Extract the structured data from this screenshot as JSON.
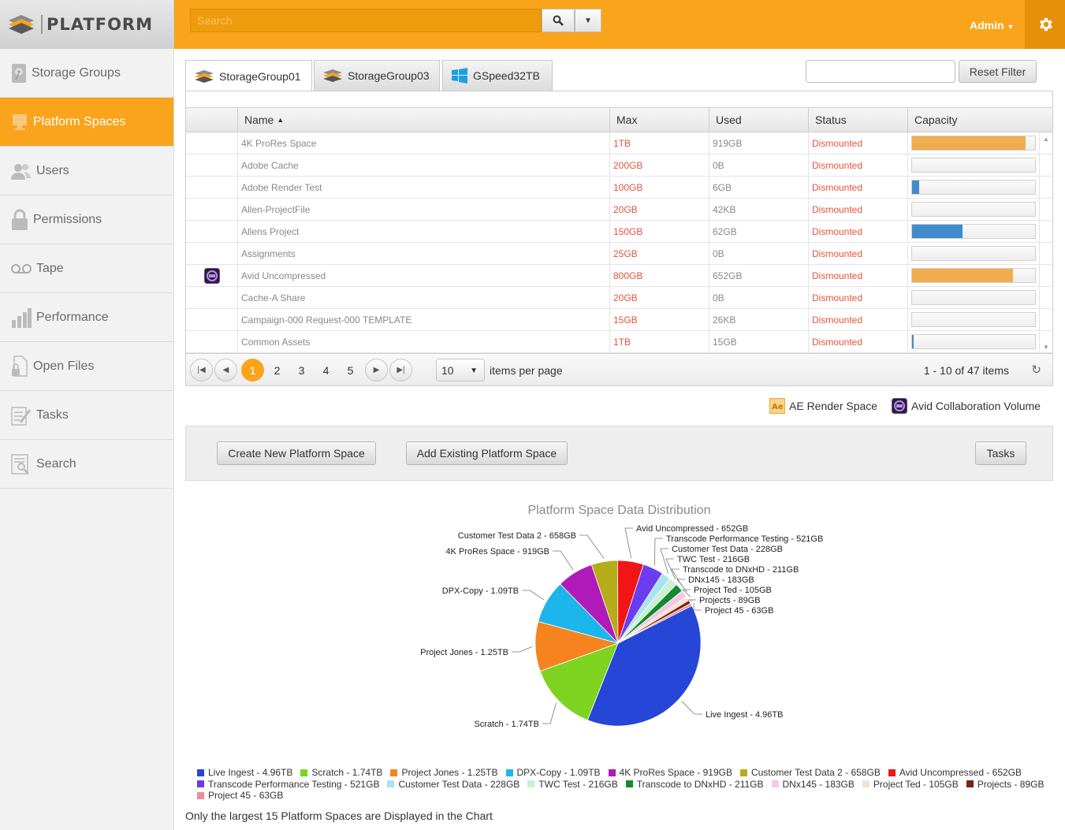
{
  "header": {
    "logo_text": "PLATFORM",
    "search_placeholder": "Search",
    "user": "Admin"
  },
  "sidebar": {
    "items": [
      {
        "label": "Storage Groups",
        "icon": "storage-icon"
      },
      {
        "label": "Platform Spaces",
        "icon": "platform-icon",
        "active": true
      },
      {
        "label": "Users",
        "icon": "users-icon"
      },
      {
        "label": "Permissions",
        "icon": "lock-icon"
      },
      {
        "label": "Tape",
        "icon": "tape-icon"
      },
      {
        "label": "Performance",
        "icon": "bars-icon"
      },
      {
        "label": "Open Files",
        "icon": "file-lock-icon"
      },
      {
        "label": "Tasks",
        "icon": "tasks-icon"
      },
      {
        "label": "Search",
        "icon": "search-doc-icon"
      }
    ]
  },
  "tabs": [
    {
      "label": "StorageGroup01",
      "active": true
    },
    {
      "label": "StorageGroup03"
    },
    {
      "label": "GSpeed32TB"
    }
  ],
  "filter": {
    "value": "",
    "reset_label": "Reset Filter"
  },
  "grid": {
    "columns": [
      "Name",
      "Max",
      "Used",
      "Status",
      "Capacity"
    ],
    "sort_indicator": "▲",
    "rows": [
      {
        "icon": "",
        "name": "4K ProRes Space",
        "max": "1TB",
        "used": "919GB",
        "status": "Dismounted",
        "capacity_pct": 92,
        "bar_color": "#f0ad4e"
      },
      {
        "icon": "",
        "name": "Adobe Cache",
        "max": "200GB",
        "used": "0B",
        "status": "Dismounted",
        "capacity_pct": 0,
        "bar_color": "#f0ad4e"
      },
      {
        "icon": "",
        "name": "Adobe Render Test",
        "max": "100GB",
        "used": "6GB",
        "status": "Dismounted",
        "capacity_pct": 6,
        "bar_color": "#428bca"
      },
      {
        "icon": "",
        "name": "Allen-ProjectFile",
        "max": "20GB",
        "used": "42KB",
        "status": "Dismounted",
        "capacity_pct": 0,
        "bar_color": "#428bca"
      },
      {
        "icon": "",
        "name": "Allens Project",
        "max": "150GB",
        "used": "62GB",
        "status": "Dismounted",
        "capacity_pct": 41,
        "bar_color": "#428bca"
      },
      {
        "icon": "",
        "name": "Assignments",
        "max": "25GB",
        "used": "0B",
        "status": "Dismounted",
        "capacity_pct": 0,
        "bar_color": "#428bca"
      },
      {
        "icon": "avid",
        "name": "Avid Uncompressed",
        "max": "800GB",
        "used": "652GB",
        "status": "Dismounted",
        "capacity_pct": 82,
        "bar_color": "#f0ad4e"
      },
      {
        "icon": "",
        "name": "Cache-A Share",
        "max": "20GB",
        "used": "0B",
        "status": "Dismounted",
        "capacity_pct": 0,
        "bar_color": "#428bca"
      },
      {
        "icon": "",
        "name": "Campaign-000 Request-000 TEMPLATE",
        "max": "15GB",
        "used": "26KB",
        "status": "Dismounted",
        "capacity_pct": 0,
        "bar_color": "#428bca"
      },
      {
        "icon": "",
        "name": "Common Assets",
        "max": "1TB",
        "used": "15GB",
        "status": "Dismounted",
        "capacity_pct": 1.5,
        "bar_color": "#428bca"
      }
    ]
  },
  "pager": {
    "pages": [
      "1",
      "2",
      "3",
      "4",
      "5"
    ],
    "current": "1",
    "per_page": "10",
    "per_page_label": "items per page",
    "info": "1 - 10 of 47 items"
  },
  "legend_icons": [
    {
      "label": "AE Render Space",
      "icon": "ae-icon"
    },
    {
      "label": "Avid Collaboration Volume",
      "icon": "avid-icon"
    }
  ],
  "actions": {
    "create": "Create New Platform Space",
    "add": "Add Existing Platform Space",
    "tasks": "Tasks"
  },
  "chart_data": {
    "type": "pie",
    "title": "Platform Space Data Distribution",
    "unit": "GB",
    "slices": [
      {
        "label": "Live Ingest - 4.96TB",
        "value": 4960,
        "color": "#2546d6"
      },
      {
        "label": "Scratch - 1.74TB",
        "value": 1740,
        "color": "#7ed321"
      },
      {
        "label": "Project Jones - 1.25TB",
        "value": 1250,
        "color": "#f5841f"
      },
      {
        "label": "DPX-Copy - 1.09TB",
        "value": 1090,
        "color": "#1cb5ec"
      },
      {
        "label": "4K ProRes Space - 919GB",
        "value": 919,
        "color": "#b01ab8"
      },
      {
        "label": "Customer Test Data 2 - 658GB",
        "value": 658,
        "color": "#b5ac1a"
      },
      {
        "label": "Avid Uncompressed - 652GB",
        "value": 652,
        "color": "#f11515"
      },
      {
        "label": "Transcode Performance Testing - 521GB",
        "value": 521,
        "color": "#6a3df0"
      },
      {
        "label": "Customer Test Data - 228GB",
        "value": 228,
        "color": "#a9e3f2"
      },
      {
        "label": "TWC Test - 216GB",
        "value": 216,
        "color": "#c9f0d0"
      },
      {
        "label": "Transcode to DNxHD - 211GB",
        "value": 211,
        "color": "#138a2e"
      },
      {
        "label": "DNx145 - 183GB",
        "value": 183,
        "color": "#f5c8e6"
      },
      {
        "label": "Project Ted - 105GB",
        "value": 105,
        "color": "#f6e2cc"
      },
      {
        "label": "Projects - 89GB",
        "value": 89,
        "color": "#7a2510"
      },
      {
        "label": "Project 45 - 63GB",
        "value": 63,
        "color": "#f08aa2"
      }
    ],
    "note": "Only the largest 15 Platform Spaces are Displayed in the Chart"
  }
}
